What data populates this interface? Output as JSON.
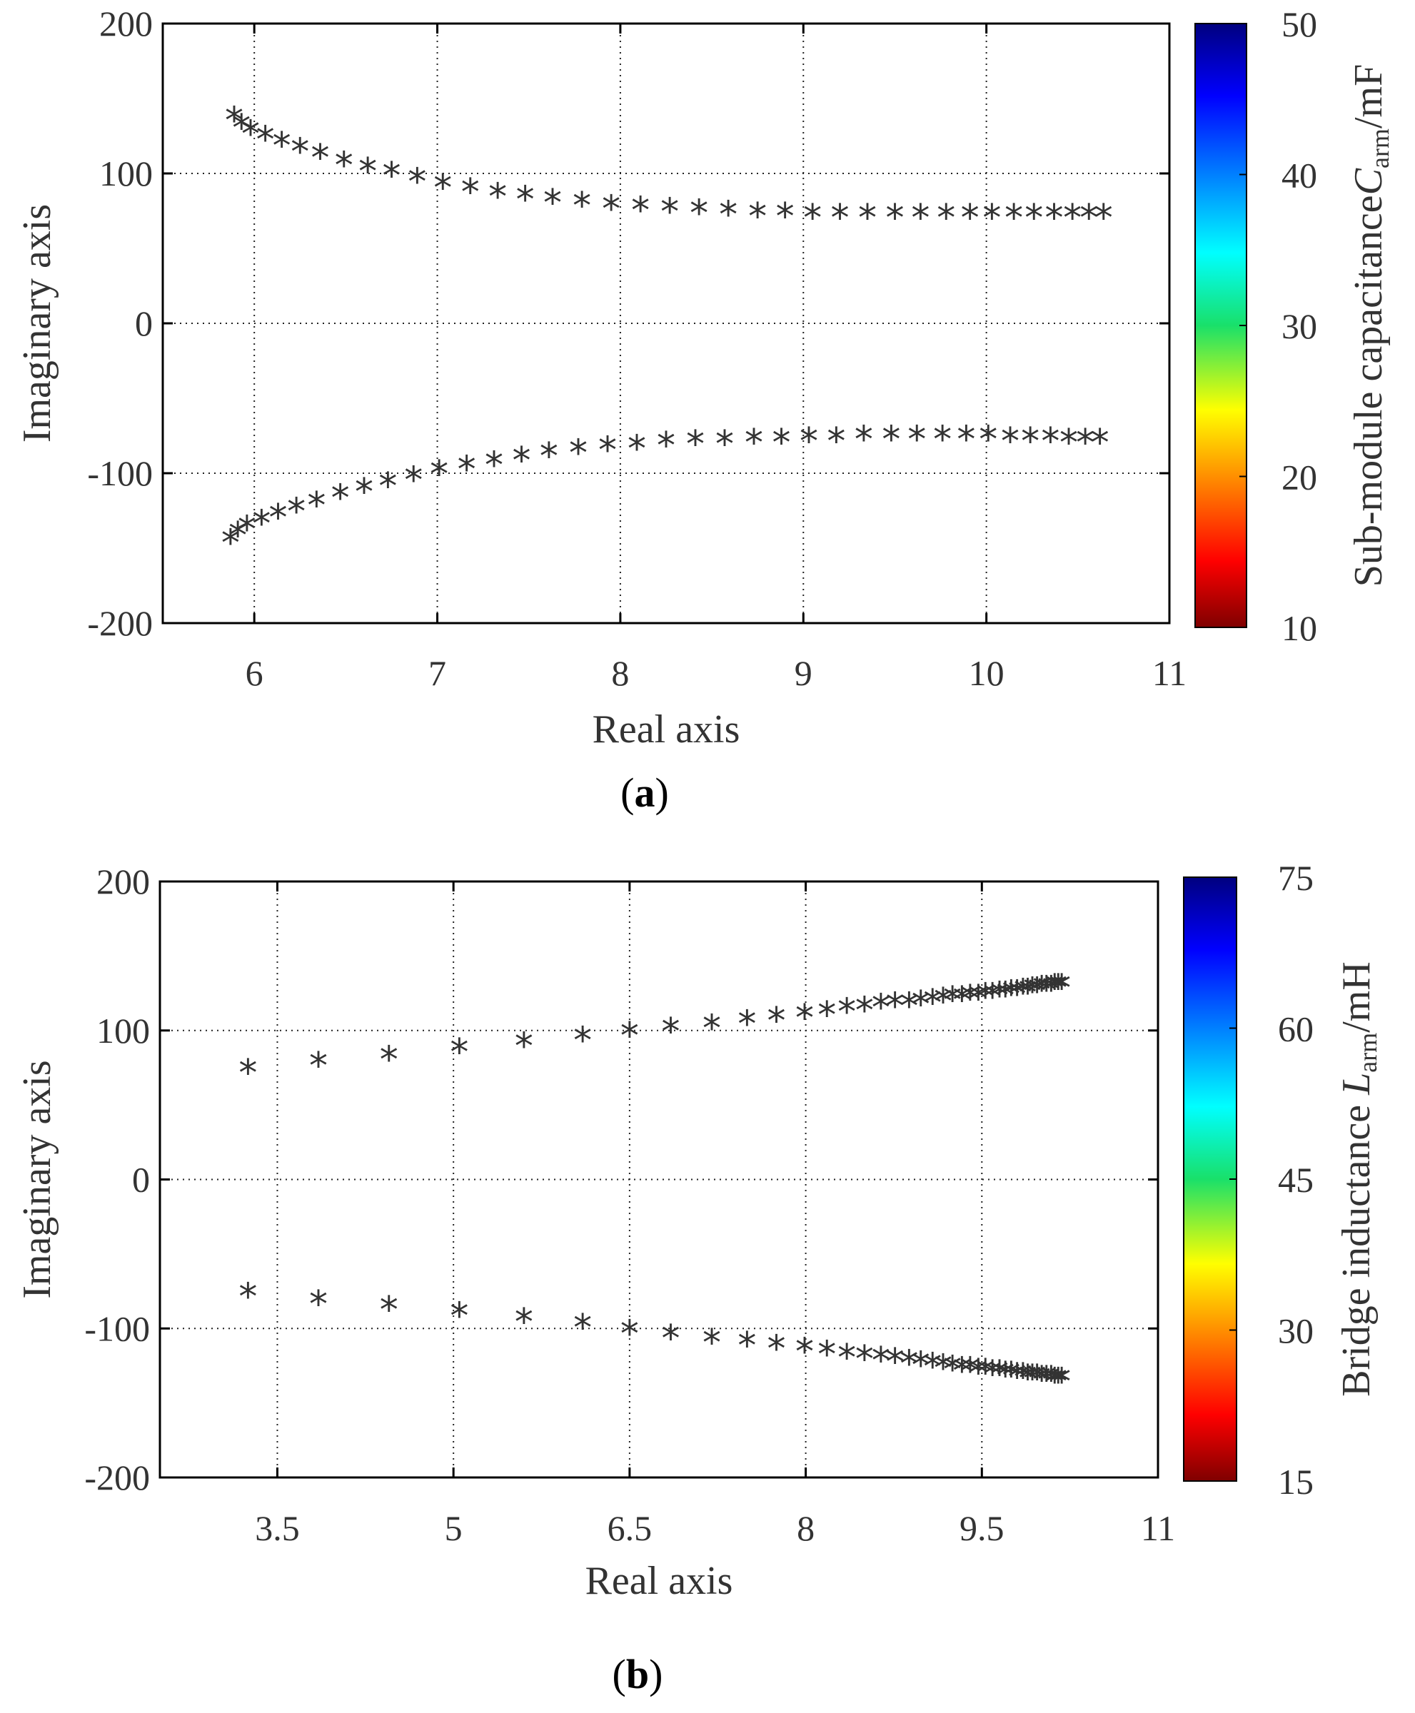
{
  "chart_data": [
    {
      "type": "scatter",
      "caption_letter": "a",
      "xlabel": "Real axis",
      "ylabel": "Imaginary axis",
      "xlim": [
        5.5,
        11
      ],
      "ylim": [
        -200,
        200
      ],
      "xticks": [
        6,
        7,
        8,
        9,
        10,
        11
      ],
      "yticks": [
        -200,
        -100,
        0,
        100,
        200
      ],
      "grid": true,
      "colorbar": {
        "label_prefix": "Sub-module capacitance",
        "label_symbol": "C",
        "label_subscript": "arm",
        "label_unit": "/mF",
        "min": 10,
        "max": 50,
        "ticks": [
          50,
          40,
          30,
          20,
          10
        ]
      },
      "upper_branch": {
        "x": [
          5.89,
          5.93,
          5.98,
          6.06,
          6.15,
          6.25,
          6.36,
          6.49,
          6.62,
          6.75,
          6.89,
          7.03,
          7.18,
          7.33,
          7.48,
          7.63,
          7.79,
          7.95,
          8.11,
          8.27,
          8.43,
          8.59,
          8.75,
          8.9,
          9.05,
          9.2,
          9.35,
          9.5,
          9.64,
          9.78,
          9.91,
          10.03,
          10.15,
          10.26,
          10.37,
          10.47,
          10.56,
          10.64
        ],
        "y": [
          136,
          131,
          127,
          123,
          119,
          115,
          111,
          106,
          102,
          99,
          95,
          91,
          88,
          85,
          83,
          81,
          79,
          77,
          76,
          75,
          74,
          73,
          72,
          72,
          71,
          71,
          71,
          71,
          71,
          71,
          71,
          71,
          71,
          71,
          71,
          71,
          71,
          71
        ]
      },
      "lower_branch": {
        "x": [
          5.87,
          5.91,
          5.96,
          6.04,
          6.13,
          6.23,
          6.34,
          6.47,
          6.6,
          6.73,
          6.87,
          7.01,
          7.16,
          7.31,
          7.46,
          7.61,
          7.77,
          7.93,
          8.09,
          8.25,
          8.41,
          8.57,
          8.73,
          8.88,
          9.03,
          9.18,
          9.33,
          9.48,
          9.62,
          9.76,
          9.89,
          10.01,
          10.13,
          10.24,
          10.35,
          10.45,
          10.54,
          10.62
        ],
        "y": [
          -146,
          -141,
          -137,
          -133,
          -129,
          -125,
          -121,
          -116,
          -112,
          -108,
          -104,
          -100,
          -97,
          -94,
          -91,
          -88,
          -86,
          -84,
          -83,
          -81,
          -80,
          -80,
          -79,
          -79,
          -78,
          -78,
          -77,
          -77,
          -77,
          -77,
          -77,
          -77,
          -78,
          -78,
          -78,
          -79,
          -79,
          -79
        ]
      }
    },
    {
      "type": "scatter",
      "caption_letter": "b",
      "xlabel": "Real axis",
      "ylabel": "Imaginary axis",
      "xlim": [
        2.5,
        11
      ],
      "ylim": [
        -200,
        200
      ],
      "xticks": [
        3.5,
        5,
        6.5,
        8,
        9.5,
        11
      ],
      "xtick_labels": [
        "3.5",
        "5",
        "6.5",
        "8",
        "9.5",
        "11"
      ],
      "yticks": [
        -200,
        -100,
        0,
        100,
        200
      ],
      "grid": true,
      "colorbar": {
        "label_prefix": "Bridge inductance ",
        "label_symbol": "L",
        "label_subscript": "arm",
        "label_unit": "/mH",
        "min": 15,
        "max": 75,
        "ticks": [
          75,
          60,
          45,
          30,
          15
        ]
      },
      "upper_branch": {
        "x": [
          3.25,
          3.85,
          4.45,
          5.05,
          5.6,
          6.1,
          6.5,
          6.85,
          7.2,
          7.5,
          7.75,
          7.99,
          8.18,
          8.35,
          8.5,
          8.64,
          8.76,
          8.88,
          8.98,
          9.08,
          9.17,
          9.25,
          9.33,
          9.4,
          9.47,
          9.53,
          9.59,
          9.65,
          9.7,
          9.75,
          9.8,
          9.85,
          9.89,
          9.93,
          9.97,
          10.01,
          10.05,
          10.09,
          10.12,
          10.15,
          10.18
        ],
        "y": [
          72,
          77,
          81,
          86,
          90,
          94,
          97,
          100,
          102,
          105,
          107,
          109,
          111,
          113,
          114,
          116,
          117,
          117,
          118,
          119,
          120,
          121,
          121,
          122,
          122,
          123,
          123,
          124,
          124,
          125,
          125,
          126,
          126,
          127,
          127,
          128,
          128,
          128,
          129,
          129,
          129
        ]
      },
      "lower_branch": {
        "x": [
          3.25,
          3.85,
          4.45,
          5.05,
          5.6,
          6.1,
          6.5,
          6.85,
          7.2,
          7.5,
          7.75,
          7.99,
          8.18,
          8.35,
          8.5,
          8.64,
          8.76,
          8.88,
          8.98,
          9.08,
          9.17,
          9.25,
          9.33,
          9.4,
          9.47,
          9.53,
          9.59,
          9.65,
          9.7,
          9.75,
          9.8,
          9.85,
          9.89,
          9.93,
          9.97,
          10.01,
          10.05,
          10.09,
          10.12,
          10.15,
          10.18
        ],
        "y": [
          -78,
          -83,
          -87,
          -91,
          -95,
          -99,
          -103,
          -106,
          -109,
          -111,
          -113,
          -115,
          -117,
          -119,
          -120,
          -121,
          -122,
          -123,
          -124,
          -125,
          -126,
          -127,
          -128,
          -128,
          -129,
          -129,
          -130,
          -130,
          -131,
          -131,
          -132,
          -132,
          -133,
          -133,
          -133,
          -134,
          -134,
          -134,
          -135,
          -135,
          -135
        ]
      }
    }
  ]
}
